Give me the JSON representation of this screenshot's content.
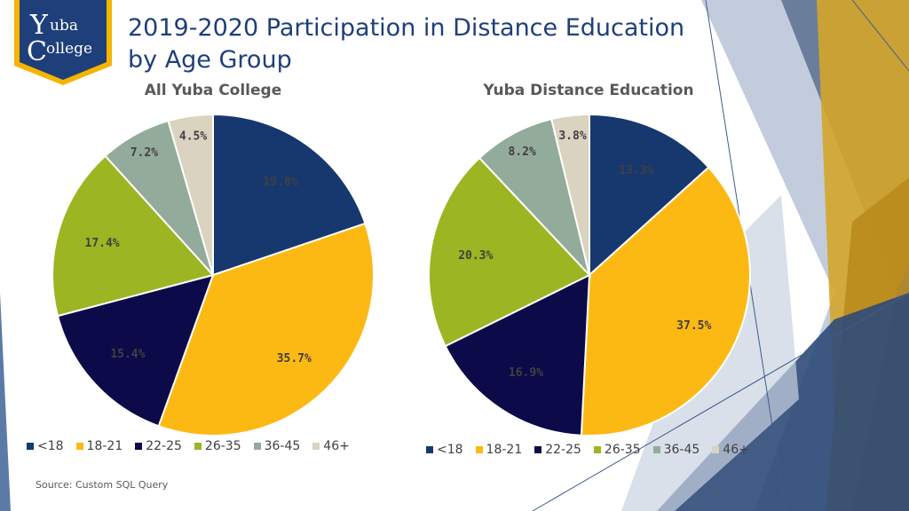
{
  "title": "2019-2020 Participation in Distance Education by Age Group",
  "logo": {
    "line1": "uba",
    "line2": "ollege",
    "initial1": "Y",
    "initial2": "C"
  },
  "source": "Source: Custom SQL Query",
  "colors": {
    "<18": "#17386E",
    "18-21": "#FDB913",
    "22-25": "#0C0A48",
    "26-35": "#9CB523",
    "36-45": "#93AB9B",
    "46+": "#D9D3BF",
    "accent_gold": "#F4B400",
    "accent_navy": "#1F3F7A"
  },
  "chart_data": [
    {
      "type": "pie",
      "title": "All Yuba College",
      "categories": [
        "<18",
        "18-21",
        "22-25",
        "26-35",
        "36-45",
        "46+"
      ],
      "values": [
        19.8,
        35.7,
        15.4,
        17.4,
        7.2,
        4.5
      ],
      "labels": [
        "19.8%",
        "35.7%",
        "15.4%",
        "17.4%",
        "7.2%",
        "4.5%"
      ],
      "legend": [
        "<18",
        "18-21",
        "22-25",
        "26-35",
        "36-45",
        "46+"
      ],
      "legend_position": "bottom"
    },
    {
      "type": "pie",
      "title": "Yuba Distance Education",
      "categories": [
        "<18",
        "18-21",
        "22-25",
        "26-35",
        "36-45",
        "46+"
      ],
      "values": [
        13.3,
        37.5,
        16.9,
        20.3,
        8.2,
        3.8
      ],
      "labels": [
        "13.3%",
        "37.5%",
        "16.9%",
        "20.3%",
        "8.2%",
        "3.8%"
      ],
      "legend": [
        "<18",
        "18-21",
        "22-25",
        "26-35",
        "36-45",
        "46+"
      ],
      "legend_position": "bottom"
    }
  ]
}
